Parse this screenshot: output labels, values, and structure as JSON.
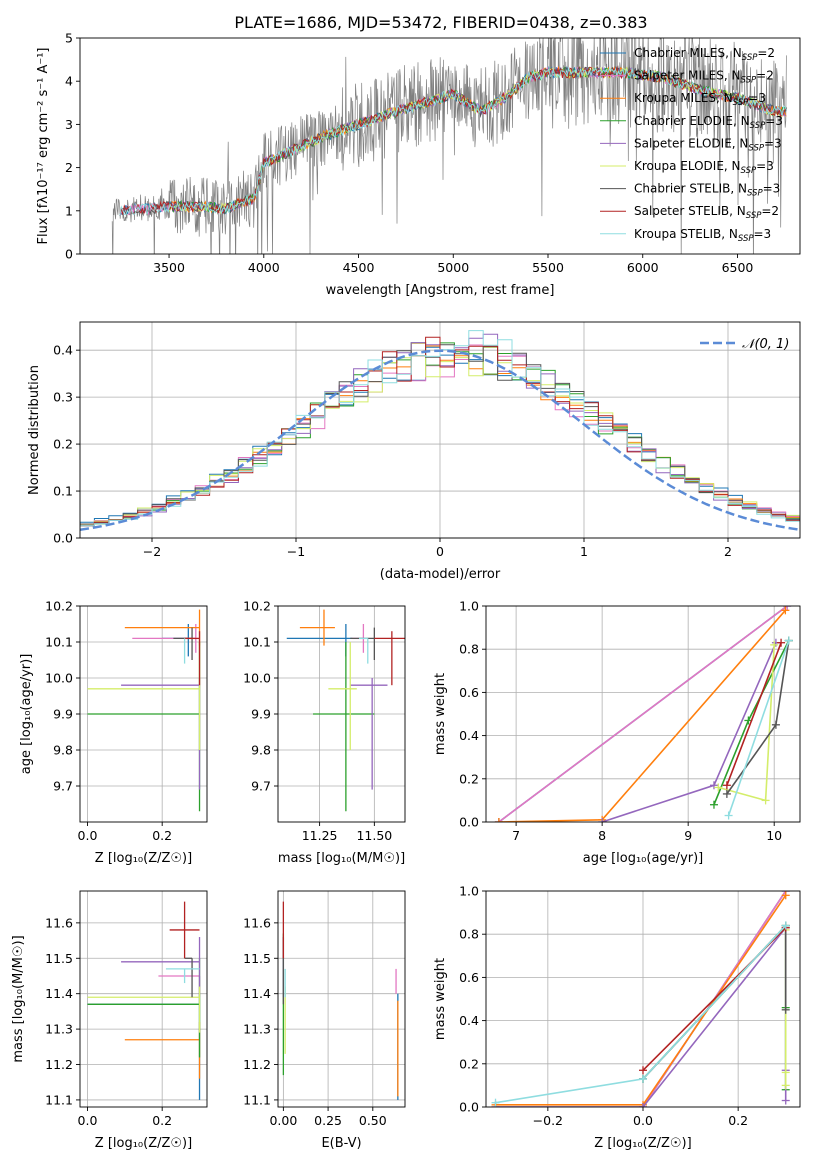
{
  "figure_title": "PLATE=1686, MJD=53472, FIBERID=0438, z=0.383",
  "colors": {
    "chabrier_miles": "#1f77b4",
    "salpeter_miles": "#e377c2",
    "kroupa_miles": "#ff7f0e",
    "chabrier_elodie": "#2ca02c",
    "salpeter_elodie": "#9467bd",
    "kroupa_elodie": "#d4ed6a",
    "chabrier_stelib": "#555555",
    "salpeter_stelib": "#b22222",
    "kroupa_stelib": "#8fdde0",
    "data": "#808080",
    "normal": "#5b8bd6"
  },
  "chart_data": [
    {
      "id": "spectrum",
      "type": "line",
      "xlabel": "wavelength [Angstrom, rest frame]",
      "ylabel": "Flux [fλ10⁻¹⁷ erg cm⁻² s⁻¹ A⁻¹]",
      "xlim": [
        3030,
        6830
      ],
      "ylim": [
        0,
        5
      ],
      "xticks": [
        3500,
        4000,
        4500,
        5000,
        5500,
        6000,
        6500
      ],
      "yticks": [
        0,
        1,
        2,
        3,
        4,
        5
      ],
      "grid": false,
      "legend_position": "top-right",
      "continuum": {
        "x": [
          3200,
          3400,
          3500,
          3700,
          3800,
          3950,
          4000,
          4150,
          4300,
          4500,
          4700,
          4850,
          5000,
          5150,
          5300,
          5400,
          5500,
          5700,
          5900,
          6100,
          6300,
          6500,
          6700
        ],
        "y": [
          1.0,
          1.05,
          1.1,
          1.1,
          1.05,
          1.3,
          2.1,
          2.4,
          2.7,
          3.0,
          3.3,
          3.5,
          3.7,
          3.3,
          3.7,
          4.1,
          4.2,
          4.2,
          4.2,
          4.1,
          3.8,
          3.6,
          3.3
        ]
      },
      "legend": [
        {
          "key": "chabrier_miles",
          "label": "Chabrier MILES, N",
          "sub": "SSP",
          "suffix": "=2"
        },
        {
          "key": "salpeter_miles",
          "label": "Salpeter MILES, N",
          "sub": "SSP",
          "suffix": "=2"
        },
        {
          "key": "kroupa_miles",
          "label": "Kroupa MILES, N",
          "sub": "SSP",
          "suffix": "=3"
        },
        {
          "key": "chabrier_elodie",
          "label": "Chabrier ELODIE, N",
          "sub": "SSP",
          "suffix": "=3"
        },
        {
          "key": "salpeter_elodie",
          "label": "Salpeter ELODIE, N",
          "sub": "SSP",
          "suffix": "=3"
        },
        {
          "key": "kroupa_elodie",
          "label": "Kroupa ELODIE, N",
          "sub": "SSP",
          "suffix": "=3"
        },
        {
          "key": "chabrier_stelib",
          "label": "Chabrier STELIB, N",
          "sub": "SSP",
          "suffix": "=3"
        },
        {
          "key": "salpeter_stelib",
          "label": "Salpeter STELIB, N",
          "sub": "SSP",
          "suffix": "=2"
        },
        {
          "key": "kroupa_stelib",
          "label": "Kroupa STELIB, N",
          "sub": "SSP",
          "suffix": "=3"
        }
      ]
    },
    {
      "id": "residuals",
      "type": "line",
      "xlabel": "(data-model)/error",
      "ylabel": "Normed distribution",
      "xlim": [
        -2.5,
        2.5
      ],
      "ylim": [
        0,
        0.46
      ],
      "xticks": [
        -2,
        -1,
        0,
        1,
        2
      ],
      "yticks": [
        0.0,
        0.1,
        0.2,
        0.3,
        0.4
      ],
      "grid": true,
      "legend_position": "top-right",
      "legend_label": "𝒩(0, 1)"
    },
    {
      "id": "age_vs_Z",
      "type": "scatter",
      "xlabel": "Z [log₁₀(Z/Z☉)]",
      "ylabel": "age  [log₁₀(age/yr)]",
      "xlim": [
        -0.02,
        0.32
      ],
      "ylim": [
        9.6,
        10.2
      ],
      "xticks": [
        0.0,
        0.2
      ],
      "yticks": [
        9.7,
        9.8,
        9.9,
        10.0,
        10.1,
        10.2
      ],
      "grid": true,
      "points": [
        {
          "key": "chabrier_miles",
          "x": 0.27,
          "y": 10.11,
          "xerr": [
            0.07,
            0.0
          ],
          "yerr": [
            0.05,
            0.04
          ]
        },
        {
          "key": "salpeter_miles",
          "x": 0.29,
          "y": 10.11,
          "xerr": [
            0.17,
            0.0
          ],
          "yerr": [
            0.04,
            0.04
          ]
        },
        {
          "key": "kroupa_miles",
          "x": 0.3,
          "y": 10.14,
          "xerr": [
            0.2,
            0.0
          ],
          "yerr": [
            0.05,
            0.05
          ]
        },
        {
          "key": "chabrier_elodie",
          "x": 0.3,
          "y": 9.9,
          "xerr": [
            0.3,
            0.0
          ],
          "yerr": [
            0.27,
            0.2
          ]
        },
        {
          "key": "salpeter_elodie",
          "x": 0.3,
          "y": 9.98,
          "xerr": [
            0.21,
            0.0
          ],
          "yerr": [
            0.29,
            0.02
          ]
        },
        {
          "key": "kroupa_elodie",
          "x": 0.3,
          "y": 9.97,
          "xerr": [
            0.3,
            0.0
          ],
          "yerr": [
            0.17,
            0.13
          ]
        },
        {
          "key": "chabrier_stelib",
          "x": 0.28,
          "y": 10.11,
          "xerr": [
            0.05,
            0.0
          ],
          "yerr": [
            0.06,
            0.03
          ]
        },
        {
          "key": "salpeter_stelib",
          "x": 0.3,
          "y": 10.11,
          "xerr": [
            0.04,
            0.0
          ],
          "yerr": [
            0.13,
            0.02
          ]
        },
        {
          "key": "kroupa_stelib",
          "x": 0.26,
          "y": 10.11,
          "xerr": [
            0.0,
            0.0
          ],
          "yerr": [
            0.07,
            0.0
          ]
        }
      ]
    },
    {
      "id": "age_vs_mass",
      "type": "scatter",
      "xlabel": "mass [log₁₀(M/M☉)]",
      "ylabel": "",
      "xlim": [
        11.06,
        11.64
      ],
      "ylim": [
        9.6,
        10.2
      ],
      "xticks": [
        11.25,
        11.5
      ],
      "yticks": [
        9.7,
        9.8,
        9.9,
        10.0,
        10.1,
        10.2
      ],
      "grid": true,
      "points": [
        {
          "key": "chabrier_miles",
          "x": 11.37,
          "y": 10.11,
          "xerr": [
            0.27,
            0.03
          ],
          "yerr": [
            0.05,
            0.04
          ]
        },
        {
          "key": "salpeter_miles",
          "x": 11.45,
          "y": 10.11,
          "xerr": [
            0.05,
            0.0
          ],
          "yerr": [
            0.04,
            0.04
          ]
        },
        {
          "key": "kroupa_miles",
          "x": 11.27,
          "y": 10.14,
          "xerr": [
            0.11,
            0.05
          ],
          "yerr": [
            0.05,
            0.05
          ]
        },
        {
          "key": "chabrier_elodie",
          "x": 11.37,
          "y": 9.9,
          "xerr": [
            0.15,
            0.13
          ],
          "yerr": [
            0.27,
            0.2
          ]
        },
        {
          "key": "salpeter_elodie",
          "x": 11.49,
          "y": 9.98,
          "xerr": [
            0.1,
            0.07
          ],
          "yerr": [
            0.29,
            0.02
          ]
        },
        {
          "key": "kroupa_elodie",
          "x": 11.39,
          "y": 9.97,
          "xerr": [
            0.1,
            0.03
          ],
          "yerr": [
            0.17,
            0.13
          ]
        },
        {
          "key": "chabrier_stelib",
          "x": 11.5,
          "y": 10.11,
          "xerr": [
            0.11,
            0.0
          ],
          "yerr": [
            0.06,
            0.03
          ]
        },
        {
          "key": "salpeter_stelib",
          "x": 11.58,
          "y": 10.11,
          "xerr": [
            0.08,
            0.08
          ],
          "yerr": [
            0.13,
            0.02
          ]
        },
        {
          "key": "kroupa_stelib",
          "x": 11.47,
          "y": 10.11,
          "xerr": [
            0.04,
            0.0
          ],
          "yerr": [
            0.07,
            0.0
          ]
        }
      ]
    },
    {
      "id": "weight_vs_age",
      "type": "line",
      "xlabel": "age  [log₁₀(age/yr)]",
      "ylabel": "mass weight",
      "xlim": [
        6.65,
        10.3
      ],
      "ylim": [
        0,
        1.0
      ],
      "xticks": [
        7,
        8,
        9,
        10
      ],
      "yticks": [
        0.0,
        0.2,
        0.4,
        0.6,
        0.8,
        1.0
      ],
      "grid": true,
      "series": [
        {
          "key": "chabrier_miles",
          "x": [
            6.8,
            10.15
          ],
          "y": [
            0.0,
            1.0
          ]
        },
        {
          "key": "salpeter_miles",
          "x": [
            6.8,
            10.15
          ],
          "y": [
            0.0,
            1.0
          ]
        },
        {
          "key": "kroupa_miles",
          "x": [
            6.8,
            8.0,
            10.13
          ],
          "y": [
            0.0,
            0.01,
            0.98
          ]
        },
        {
          "key": "chabrier_elodie",
          "x": [
            9.3,
            9.7,
            10.17
          ],
          "y": [
            0.08,
            0.47,
            0.84
          ]
        },
        {
          "key": "salpeter_elodie",
          "x": [
            8.0,
            9.3,
            10.02
          ],
          "y": [
            0.0,
            0.17,
            0.83
          ]
        },
        {
          "key": "kroupa_elodie",
          "x": [
            9.35,
            9.9,
            10.0
          ],
          "y": [
            0.16,
            0.1,
            0.82
          ]
        },
        {
          "key": "chabrier_stelib",
          "x": [
            9.45,
            10.02,
            10.17
          ],
          "y": [
            0.13,
            0.45,
            0.84
          ]
        },
        {
          "key": "salpeter_stelib",
          "x": [
            9.45,
            10.08
          ],
          "y": [
            0.17,
            0.83
          ]
        },
        {
          "key": "kroupa_stelib",
          "x": [
            9.47,
            10.17
          ],
          "y": [
            0.03,
            0.84
          ]
        }
      ]
    },
    {
      "id": "mass_vs_Z",
      "type": "scatter",
      "xlabel": "Z [log₁₀(Z/Z☉)]",
      "ylabel": "mass [log₁₀(M/M☉)]",
      "xlim": [
        -0.02,
        0.32
      ],
      "ylim": [
        11.08,
        11.69
      ],
      "xticks": [
        0.0,
        0.2
      ],
      "yticks": [
        11.1,
        11.2,
        11.3,
        11.4,
        11.5,
        11.6
      ],
      "grid": true,
      "points": [
        {
          "key": "chabrier_miles",
          "x": 0.3,
          "y": 11.37,
          "xerr": [
            0.3,
            0.0
          ],
          "yerr": [
            0.27,
            0.03
          ]
        },
        {
          "key": "salpeter_miles",
          "x": 0.3,
          "y": 11.45,
          "xerr": [
            0.11,
            0.0
          ],
          "yerr": [
            0.05,
            0.0
          ]
        },
        {
          "key": "kroupa_miles",
          "x": 0.3,
          "y": 11.27,
          "xerr": [
            0.2,
            0.0
          ],
          "yerr": [
            0.11,
            0.05
          ]
        },
        {
          "key": "chabrier_elodie",
          "x": 0.3,
          "y": 11.37,
          "xerr": [
            0.3,
            0.0
          ],
          "yerr": [
            0.15,
            0.13
          ]
        },
        {
          "key": "salpeter_elodie",
          "x": 0.3,
          "y": 11.49,
          "xerr": [
            0.21,
            0.0
          ],
          "yerr": [
            0.1,
            0.07
          ]
        },
        {
          "key": "kroupa_elodie",
          "x": 0.3,
          "y": 11.39,
          "xerr": [
            0.3,
            0.0
          ],
          "yerr": [
            0.1,
            0.03
          ]
        },
        {
          "key": "chabrier_stelib",
          "x": 0.28,
          "y": 11.5,
          "xerr": [
            0.02,
            0.0
          ],
          "yerr": [
            0.11,
            0.0
          ]
        },
        {
          "key": "salpeter_stelib",
          "x": 0.26,
          "y": 11.58,
          "xerr": [
            0.04,
            0.04
          ],
          "yerr": [
            0.08,
            0.08
          ]
        },
        {
          "key": "kroupa_stelib",
          "x": 0.26,
          "y": 11.47,
          "xerr": [
            0.05,
            0.04
          ],
          "yerr": [
            0.04,
            0.0
          ]
        }
      ]
    },
    {
      "id": "mass_vs_ebv",
      "type": "scatter",
      "xlabel": "E(B-V)",
      "ylabel": "",
      "xlim": [
        -0.03,
        0.68
      ],
      "ylim": [
        11.08,
        11.69
      ],
      "xticks": [
        0.0,
        0.25,
        0.5
      ],
      "yticks": [
        11.1,
        11.2,
        11.3,
        11.4,
        11.5,
        11.6
      ],
      "grid": true,
      "points": [
        {
          "key": "chabrier_miles",
          "x": 0.64,
          "y": 11.37,
          "xerr": [
            0.0,
            0.0
          ],
          "yerr": [
            0.27,
            0.03
          ]
        },
        {
          "key": "salpeter_miles",
          "x": 0.63,
          "y": 11.45,
          "xerr": [
            0.0,
            0.0
          ],
          "yerr": [
            0.05,
            0.02
          ]
        },
        {
          "key": "kroupa_miles",
          "x": 0.64,
          "y": 11.27,
          "xerr": [
            0.0,
            0.0
          ],
          "yerr": [
            0.16,
            0.11
          ]
        },
        {
          "key": "chabrier_elodie",
          "x": 0.0,
          "y": 11.37,
          "xerr": [
            0.0,
            0.0
          ],
          "yerr": [
            0.2,
            0.2
          ]
        },
        {
          "key": "salpeter_elodie",
          "x": 0.0,
          "y": 11.49,
          "xerr": [
            0.0,
            0.0
          ],
          "yerr": [
            0.1,
            0.07
          ]
        },
        {
          "key": "kroupa_elodie",
          "x": 0.01,
          "y": 11.39,
          "xerr": [
            0.0,
            0.0
          ],
          "yerr": [
            0.16,
            0.03
          ]
        },
        {
          "key": "chabrier_stelib",
          "x": 0.0,
          "y": 11.5,
          "xerr": [
            0.0,
            0.0
          ],
          "yerr": [
            0.13,
            0.06
          ]
        },
        {
          "key": "salpeter_stelib",
          "x": 0.0,
          "y": 11.58,
          "xerr": [
            0.0,
            0.0
          ],
          "yerr": [
            0.08,
            0.08
          ]
        },
        {
          "key": "kroupa_stelib",
          "x": 0.01,
          "y": 11.47,
          "xerr": [
            0.0,
            0.0
          ],
          "yerr": [
            0.08,
            0.0
          ]
        }
      ]
    },
    {
      "id": "weight_vs_Z",
      "type": "line",
      "xlabel": "Z [log₁₀(Z/Z☉)]",
      "ylabel": "mass weight",
      "xlim": [
        -0.33,
        0.33
      ],
      "ylim": [
        0,
        1.0
      ],
      "xticks": [
        -0.2,
        0.0,
        0.2
      ],
      "yticks": [
        0.0,
        0.2,
        0.4,
        0.6,
        0.8,
        1.0
      ],
      "grid": true,
      "series": [
        {
          "key": "chabrier_miles",
          "x": [
            -0.31,
            0.0,
            0.3
          ],
          "y": [
            0.0,
            0.0,
            1.0
          ]
        },
        {
          "key": "salpeter_miles",
          "x": [
            -0.31,
            0.0,
            0.3
          ],
          "y": [
            0.0,
            0.0,
            1.0
          ]
        },
        {
          "key": "kroupa_miles",
          "x": [
            -0.31,
            0.0,
            0.3
          ],
          "y": [
            0.01,
            0.01,
            0.98
          ]
        },
        {
          "key": "chabrier_elodie",
          "x": [
            0.0,
            0.3,
            0.3,
            0.3
          ],
          "y": [
            0.13,
            0.84,
            0.46,
            0.08
          ]
        },
        {
          "key": "salpeter_elodie",
          "x": [
            0.0,
            0.3,
            0.3,
            0.3
          ],
          "y": [
            0.0,
            0.83,
            0.17,
            0.03
          ]
        },
        {
          "key": "kroupa_elodie",
          "x": [
            0.3,
            0.3,
            0.3
          ],
          "y": [
            0.82,
            0.16,
            0.1
          ]
        },
        {
          "key": "chabrier_stelib",
          "x": [
            0.0,
            0.3,
            0.3
          ],
          "y": [
            0.13,
            0.84,
            0.45
          ]
        },
        {
          "key": "salpeter_stelib",
          "x": [
            0.0,
            0.3
          ],
          "y": [
            0.17,
            0.83
          ]
        },
        {
          "key": "kroupa_stelib",
          "x": [
            -0.31,
            0.0,
            0.3
          ],
          "y": [
            0.02,
            0.13,
            0.84
          ]
        }
      ]
    }
  ]
}
